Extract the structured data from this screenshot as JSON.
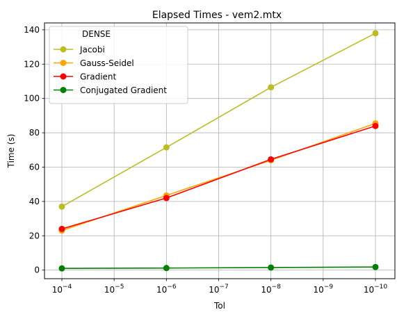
{
  "chart_data": {
    "type": "line",
    "title": "Elapsed Times - vem2.mtx",
    "xlabel": "Tol",
    "ylabel": "Time (s)",
    "x_scale": "log",
    "x_axis_inverted": true,
    "x": [
      0.0001,
      1e-06,
      1e-08,
      1e-10
    ],
    "x_ticks": [
      {
        "value": 0.0001,
        "base": "10",
        "exp": "−4"
      },
      {
        "value": 1e-05,
        "base": "10",
        "exp": "−5"
      },
      {
        "value": 1e-06,
        "base": "10",
        "exp": "−6"
      },
      {
        "value": 1e-07,
        "base": "10",
        "exp": "−7"
      },
      {
        "value": 1e-08,
        "base": "10",
        "exp": "−8"
      },
      {
        "value": 1e-09,
        "base": "10",
        "exp": "−9"
      },
      {
        "value": 1e-10,
        "base": "10",
        "exp": "−10"
      }
    ],
    "ylim": [
      -5,
      144
    ],
    "y_ticks": [
      0,
      20,
      40,
      60,
      80,
      100,
      120,
      140
    ],
    "grid": true,
    "legend": {
      "placement": "top-left",
      "title": "DENSE"
    },
    "series": [
      {
        "name": "Jacobi",
        "color": "#bcbd22",
        "values": [
          37.0,
          71.5,
          106.5,
          138.0
        ]
      },
      {
        "name": "Gauss-Seidel",
        "color": "#ffa500",
        "values": [
          23.0,
          43.5,
          64.0,
          85.5
        ]
      },
      {
        "name": "Gradient",
        "color": "#ff0000",
        "values": [
          24.0,
          42.0,
          64.5,
          84.0
        ]
      },
      {
        "name": "Conjugated Gradient",
        "color": "#008000",
        "values": [
          1.0,
          1.2,
          1.5,
          1.8
        ]
      }
    ]
  }
}
